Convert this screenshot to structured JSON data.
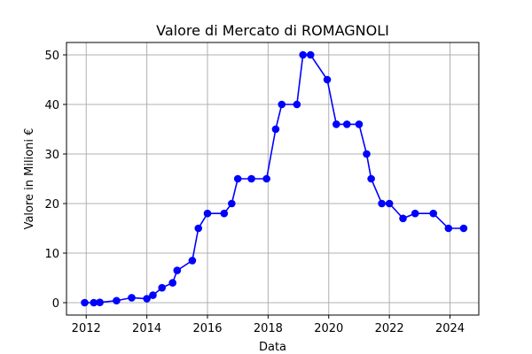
{
  "chart_data": {
    "type": "line",
    "title": "Valore di Mercato di ROMAGNOLI",
    "xlabel": "Data",
    "ylabel": "Valore in Milioni €",
    "xlim": [
      2011.35,
      2024.95
    ],
    "ylim": [
      -2.5,
      52.5
    ],
    "xticks": [
      2012,
      2014,
      2016,
      2018,
      2020,
      2022,
      2024
    ],
    "yticks": [
      0,
      10,
      20,
      30,
      40,
      50
    ],
    "grid": true,
    "color": "#0000ff",
    "marker": "circle",
    "series": [
      {
        "x": [
          2011.95,
          2012.25,
          2012.45,
          2013.0,
          2013.5,
          2014.0,
          2014.2,
          2014.5,
          2014.85,
          2015.0,
          2015.5,
          2015.7,
          2016.0,
          2016.55,
          2016.8,
          2017.0,
          2017.45,
          2017.95,
          2018.25,
          2018.45,
          2018.95,
          2019.15,
          2019.4,
          2019.95,
          2020.25,
          2020.6,
          2021.0,
          2021.25,
          2021.4,
          2021.75,
          2022.0,
          2022.45,
          2022.85,
          2023.45,
          2023.95,
          2024.45
        ],
        "y": [
          0,
          0,
          0.05,
          0.4,
          1,
          0.8,
          1.5,
          3,
          4,
          6.5,
          8.5,
          15,
          18,
          18,
          20,
          25,
          25,
          25,
          35,
          40,
          40,
          50,
          50,
          45,
          36,
          36,
          36,
          30,
          25,
          20,
          20,
          17,
          18,
          18,
          15,
          15
        ]
      }
    ]
  }
}
